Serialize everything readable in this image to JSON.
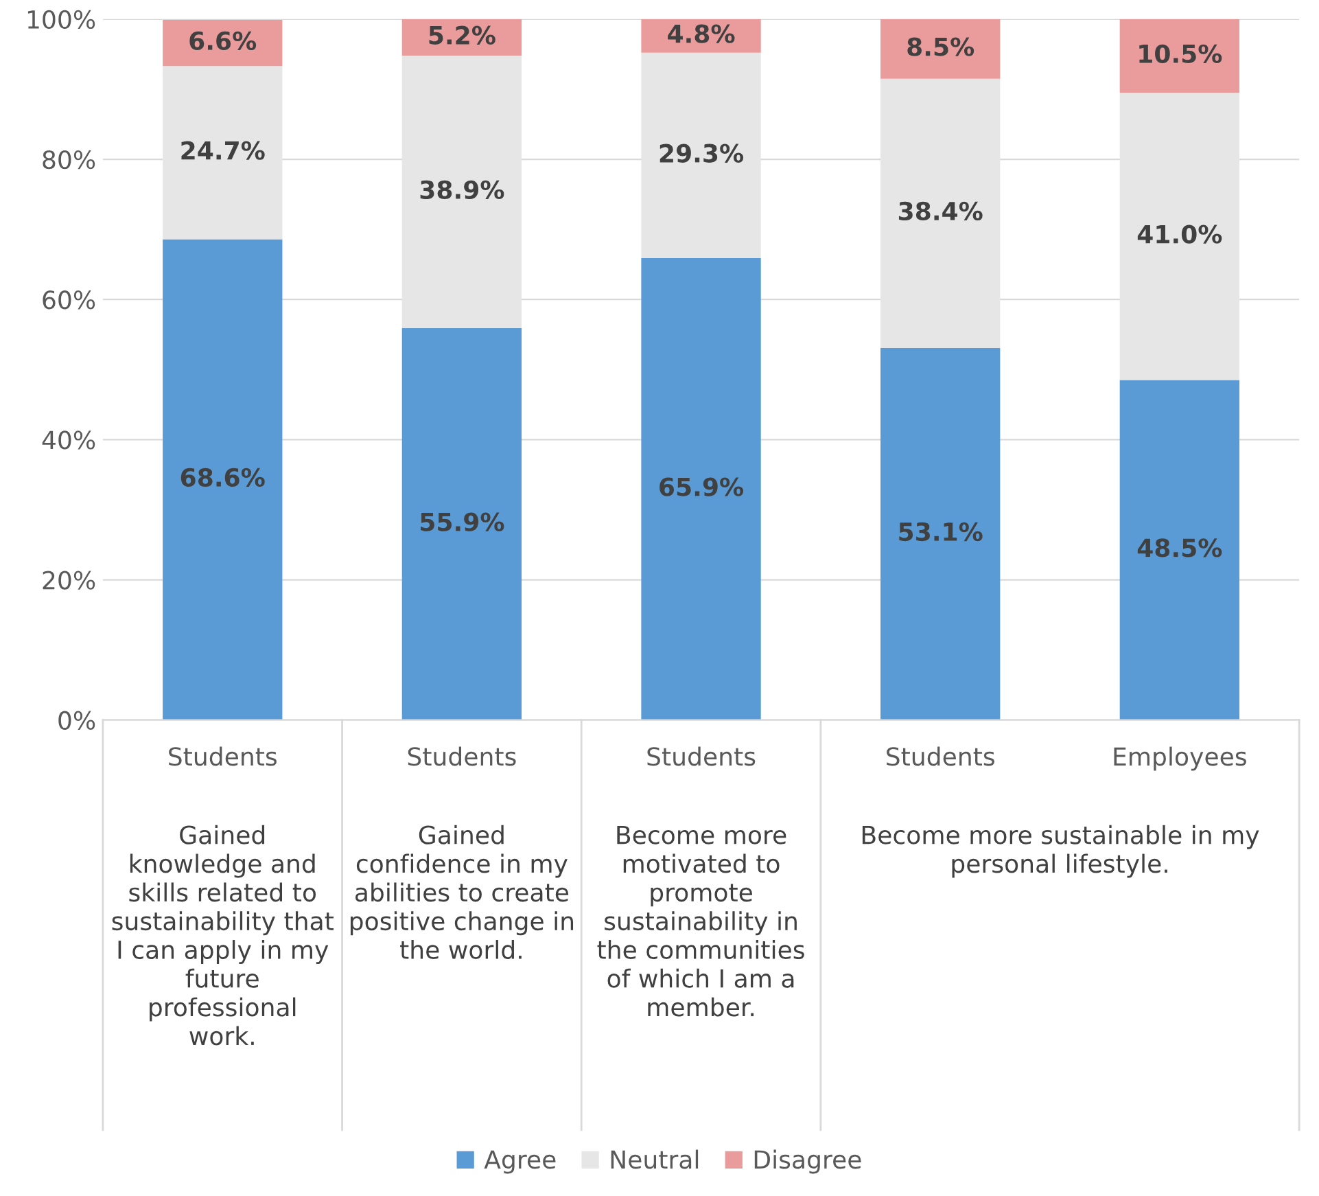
{
  "chart_data": {
    "type": "bar",
    "stacked": true,
    "categories": [
      "Students",
      "Students",
      "Students",
      "Students",
      "Employees"
    ],
    "series": [
      {
        "name": "Agree",
        "color": "#5b9bd5",
        "values": [
          68.6,
          55.9,
          65.9,
          53.1,
          48.5
        ]
      },
      {
        "name": "Neutral",
        "color": "#e7e6e6",
        "values": [
          24.7,
          38.9,
          29.3,
          38.4,
          41.0
        ]
      },
      {
        "name": "Disagree",
        "color": "#ea9c9c",
        "values": [
          6.6,
          5.2,
          4.8,
          8.5,
          10.5
        ]
      }
    ],
    "ylim": [
      0,
      100
    ],
    "yticks": [
      {
        "value": 0,
        "label": "0%"
      },
      {
        "value": 20,
        "label": "20%"
      },
      {
        "value": 40,
        "label": "40%"
      },
      {
        "value": 60,
        "label": "60%"
      },
      {
        "value": 80,
        "label": "80%"
      },
      {
        "value": 100,
        "label": "100%"
      }
    ],
    "value_labels": [
      [
        "68.6%",
        "55.9%",
        "65.9%",
        "53.1%",
        "48.5%"
      ],
      [
        "24.7%",
        "38.9%",
        "29.3%",
        "38.4%",
        "41.0%"
      ],
      [
        "6.6%",
        "5.2%",
        "4.8%",
        "8.5%",
        "10.5%"
      ]
    ],
    "annotations": [
      "Gained\nknowledge and\nskills related to\nsustainability that\nI can apply in my\nfuture\nprofessional\nwork.",
      "Gained\nconfidence in my\nabilities to create\npositive change in\nthe world.",
      "Become more\nmotivated to\npromote\nsustainability in\nthe communities\nof which I am a\nmember.",
      "Become more sustainable in my\npersonal lifestyle."
    ],
    "grid": "y",
    "legend": "bottom"
  }
}
